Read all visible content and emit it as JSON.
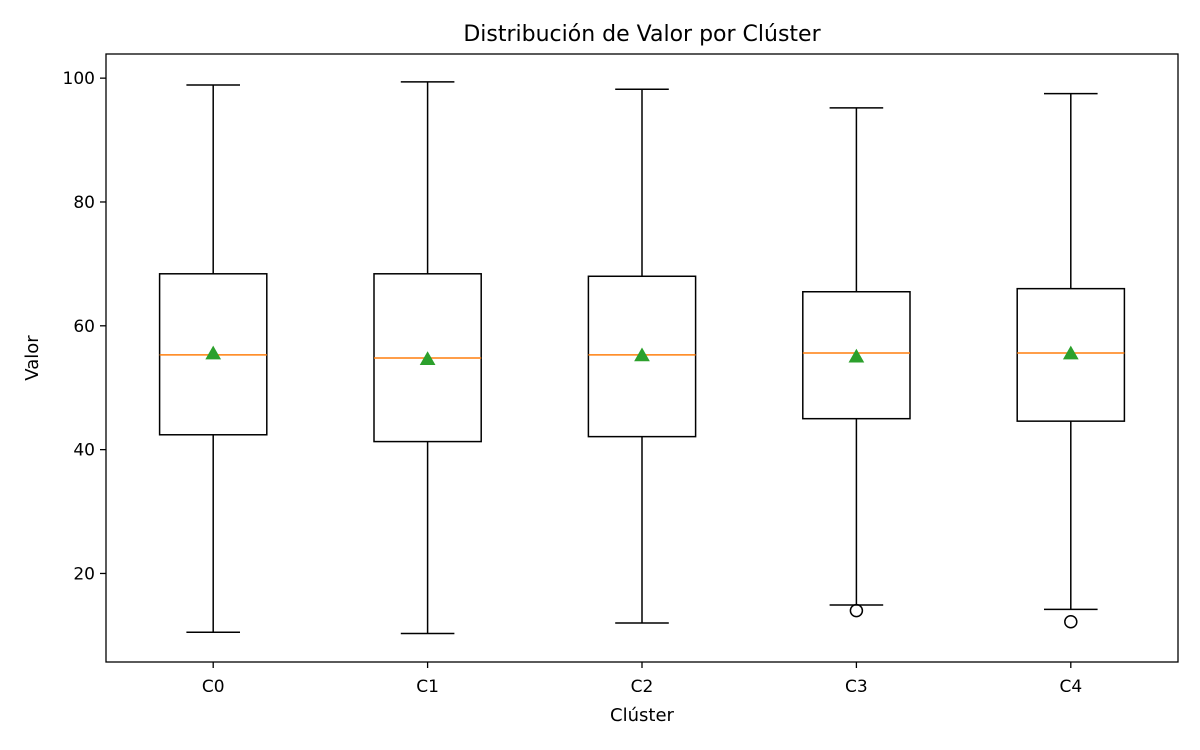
{
  "chart_data": {
    "type": "boxplot",
    "title": "Distribución de Valor por Clúster",
    "xlabel": "Clúster",
    "ylabel": "Valor",
    "ylim": [
      5.7,
      103.9
    ],
    "yticks": [
      20,
      40,
      60,
      80,
      100
    ],
    "categories": [
      "C0",
      "C1",
      "C2",
      "C3",
      "C4"
    ],
    "boxes": [
      {
        "name": "C0",
        "whisker_low": 10.5,
        "q1": 42.4,
        "median": 55.3,
        "q3": 68.4,
        "whisker_high": 98.9,
        "mean": 55.5,
        "outliers": []
      },
      {
        "name": "C1",
        "whisker_low": 10.3,
        "q1": 41.3,
        "median": 54.8,
        "q3": 68.4,
        "whisker_high": 99.4,
        "mean": 54.6,
        "outliers": []
      },
      {
        "name": "C2",
        "whisker_low": 12.0,
        "q1": 42.1,
        "median": 55.3,
        "q3": 68.0,
        "whisker_high": 98.2,
        "mean": 55.2,
        "outliers": []
      },
      {
        "name": "C3",
        "whisker_low": 14.9,
        "q1": 45.0,
        "median": 55.6,
        "q3": 65.5,
        "whisker_high": 95.2,
        "mean": 55.0,
        "outliers": [
          14.0
        ]
      },
      {
        "name": "C4",
        "whisker_low": 14.2,
        "q1": 44.6,
        "median": 55.6,
        "q3": 66.0,
        "whisker_high": 97.5,
        "mean": 55.5,
        "outliers": [
          12.2
        ]
      }
    ],
    "grid": false,
    "colors": {
      "box": "#000000",
      "median": "#ff7f0e",
      "mean": "#2ca02c"
    }
  }
}
